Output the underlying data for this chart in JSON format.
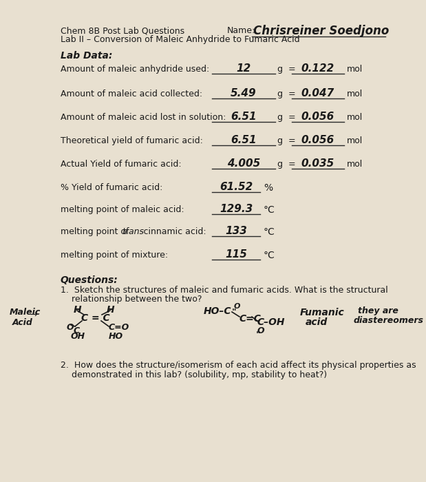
{
  "bg_color": "#e8e0d0",
  "header_left_line1": "Chem 8B Post Lab Questions",
  "header_left_line2": "Lab II – Conversion of Maleic Anhydride to Fumaric Acid",
  "header_name_label": "Name:",
  "header_name_value": "Chrisreiner Soedjono",
  "section_title": "Lab Data:",
  "rows": [
    {
      "label": "Amount of maleic anhydride used:",
      "value_g": "12",
      "has_geq": true,
      "value_mol": "0.122",
      "unit_mol": "mol"
    },
    {
      "label": "Amount of maleic acid collected:",
      "value_g": "5.49",
      "has_geq": true,
      "value_mol": "0.047",
      "unit_mol": "mol"
    },
    {
      "label": "Amount of maleic acid lost in solution:",
      "value_g": "6.51",
      "has_geq": true,
      "value_mol": "0.056",
      "unit_mol": "mol"
    },
    {
      "label": "Theoretical yield of fumaric acid:",
      "value_g": "6.51",
      "has_geq": true,
      "value_mol": "0.056",
      "unit_mol": "mol"
    },
    {
      "label": "Actual Yield of fumaric acid:",
      "value_g": "4.005",
      "has_geq": true,
      "value_mol": "0.035",
      "unit_mol": "mol"
    },
    {
      "label": "% Yield of fumaric acid:",
      "value_g": "61.52",
      "has_geq": false,
      "unit_only": "%",
      "value_mol": "",
      "unit_mol": ""
    },
    {
      "label": "melting point of maleic acid:",
      "value_g": "129.3",
      "has_geq": false,
      "unit_only": "°C",
      "value_mol": "",
      "unit_mol": ""
    },
    {
      "label": "melting point of trans-cinnamic acid:",
      "trans_italic": true,
      "value_g": "133",
      "has_geq": false,
      "unit_only": "°C",
      "value_mol": "",
      "unit_mol": ""
    },
    {
      "label": "melting point of mixture:",
      "value_g": "115",
      "has_geq": false,
      "unit_only": "°C",
      "value_mol": "",
      "unit_mol": ""
    }
  ],
  "questions_title": "Questions:",
  "q1_line1": "1.  Sketch the structures of maleic and fumaric acids. What is the structural",
  "q1_line2": "    relationship between the two?",
  "q2_line1": "2.  How does the structure/isomerism of each acid affect its physical properties as",
  "q2_line2": "    demonstrated in this lab? (solubility, mp, stability to heat?)",
  "text_color": "#1a1a1a",
  "handwriting_color": "#1a1a1a",
  "line_color": "#2a2a2a",
  "font_size_body": 9,
  "font_size_hw": 11
}
